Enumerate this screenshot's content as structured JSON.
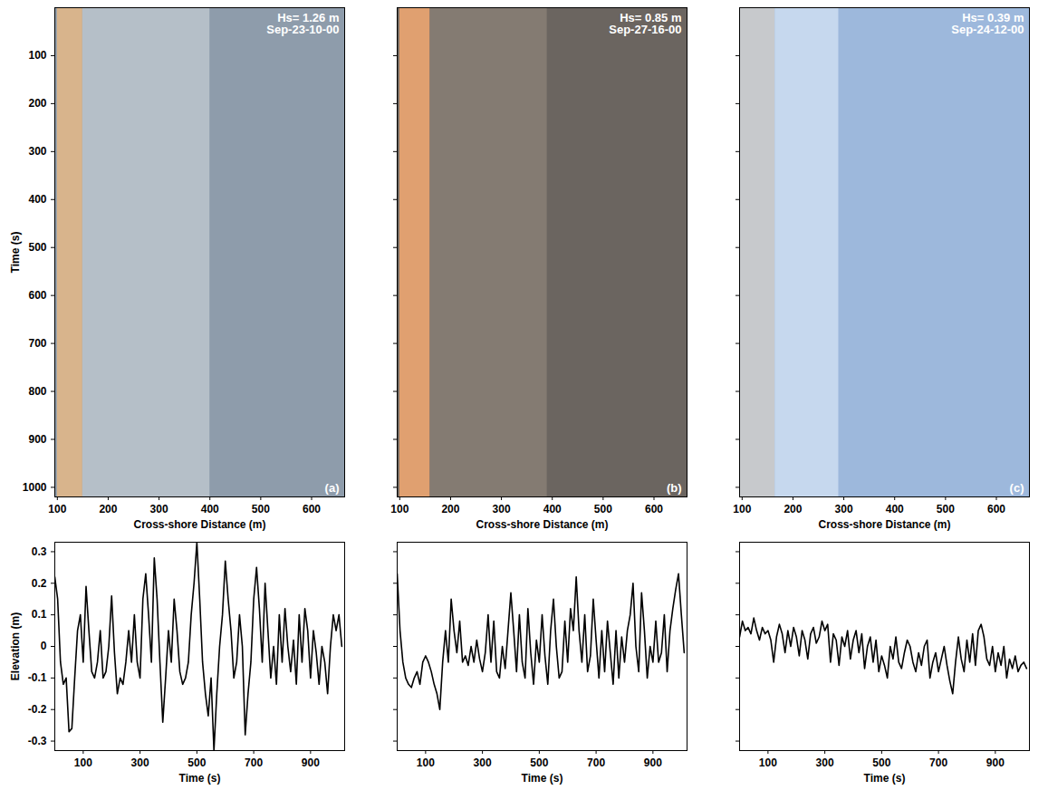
{
  "chart_data": [
    {
      "type": "image",
      "xlabel": "Cross-shore Distance (m)",
      "ylabel": "Time (s)",
      "xlim": [
        95,
        665
      ],
      "xticks": [
        100,
        200,
        300,
        400,
        500,
        600
      ],
      "ylim": [
        0,
        1020
      ],
      "yticks": [
        100,
        200,
        300,
        400,
        500,
        600,
        700,
        800,
        900,
        1000
      ],
      "annotations": [
        "Hs= 1.26 m",
        "Sep-23-10-00"
      ],
      "panel_label": "(a)",
      "color": "#8e9cab",
      "bands": [
        {
          "x0": 100,
          "x1": 150,
          "color": "#d8b48c"
        },
        {
          "x0": 150,
          "x1": 400,
          "color": "#b5bfc8"
        }
      ]
    },
    {
      "type": "image",
      "xlabel": "Cross-shore Distance (m)",
      "xlim": [
        95,
        665
      ],
      "xticks": [
        100,
        200,
        300,
        400,
        500,
        600
      ],
      "ylim": [
        0,
        1020
      ],
      "yticks": [
        100,
        200,
        300,
        400,
        500,
        600,
        700,
        800,
        900,
        1000
      ],
      "tick_labels": "x",
      "annotations": [
        "Hs= 0.85 m",
        "Sep-27-16-00"
      ],
      "panel_label": "(b)",
      "color": "#6b6560",
      "bands": [
        {
          "x0": 100,
          "x1": 160,
          "color": "#e0a070"
        },
        {
          "x0": 160,
          "x1": 390,
          "color": "#847b72"
        }
      ]
    },
    {
      "type": "image",
      "xlabel": "Cross-shore Distance (m)",
      "xlim": [
        95,
        665
      ],
      "xticks": [
        100,
        200,
        300,
        400,
        500,
        600
      ],
      "ylim": [
        0,
        1020
      ],
      "yticks": [
        100,
        200,
        300,
        400,
        500,
        600,
        700,
        800,
        900,
        1000
      ],
      "tick_labels": "x",
      "annotations": [
        "Hs= 0.39 m",
        "Sep-24-12-00"
      ],
      "panel_label": "(c)",
      "color": "#9db8dc",
      "bands": [
        {
          "x0": 95,
          "x1": 165,
          "color": "#c7c9cc"
        },
        {
          "x0": 165,
          "x1": 290,
          "color": "#c6d8ee"
        }
      ]
    },
    {
      "type": "line",
      "xlabel": "Time (s)",
      "ylabel": "Elevation (m)",
      "color": "#000000",
      "xlim": [
        0,
        1020
      ],
      "xticks": [
        100,
        300,
        500,
        700,
        900
      ],
      "ylim": [
        -0.33,
        0.33
      ],
      "yticks": [
        -0.3,
        -0.2,
        -0.1,
        0,
        0.1,
        0.2,
        0.3
      ],
      "x": [
        0,
        10,
        20,
        30,
        40,
        50,
        60,
        70,
        80,
        90,
        100,
        110,
        120,
        130,
        140,
        150,
        160,
        170,
        180,
        190,
        200,
        210,
        220,
        230,
        240,
        250,
        260,
        270,
        280,
        290,
        300,
        310,
        320,
        330,
        340,
        350,
        360,
        370,
        380,
        390,
        400,
        410,
        420,
        430,
        440,
        450,
        460,
        470,
        480,
        490,
        500,
        510,
        520,
        530,
        540,
        550,
        560,
        570,
        580,
        590,
        600,
        610,
        620,
        630,
        640,
        650,
        660,
        670,
        680,
        690,
        700,
        710,
        720,
        730,
        740,
        750,
        760,
        770,
        780,
        790,
        800,
        810,
        820,
        830,
        840,
        850,
        860,
        870,
        880,
        890,
        900,
        910,
        920,
        930,
        940,
        950,
        960,
        970,
        980,
        990,
        1000,
        1010
      ],
      "values": [
        0.22,
        0.15,
        -0.05,
        -0.12,
        -0.1,
        -0.27,
        -0.26,
        -0.1,
        0.05,
        0.1,
        -0.05,
        0.19,
        0.05,
        -0.08,
        -0.1,
        -0.05,
        0.05,
        -0.1,
        -0.08,
        0.0,
        0.16,
        -0.02,
        -0.15,
        -0.1,
        -0.12,
        -0.05,
        0.05,
        -0.05,
        0.1,
        -0.05,
        -0.1,
        0.15,
        0.23,
        0.1,
        -0.05,
        0.28,
        0.15,
        -0.05,
        -0.24,
        -0.1,
        0.05,
        -0.05,
        0.15,
        0.05,
        -0.08,
        -0.12,
        -0.1,
        -0.05,
        0.1,
        0.2,
        0.33,
        0.15,
        -0.05,
        -0.15,
        -0.22,
        -0.1,
        -0.33,
        -0.15,
        0.0,
        0.1,
        0.27,
        0.15,
        0.05,
        -0.1,
        -0.05,
        0.1,
        0.0,
        -0.28,
        -0.15,
        -0.05,
        0.15,
        0.25,
        0.12,
        -0.05,
        0.2,
        0.05,
        -0.1,
        0.0,
        -0.12,
        0.1,
        -0.05,
        0.12,
        0.0,
        -0.08,
        0.02,
        -0.12,
        0.1,
        -0.05,
        0.12,
        0.05,
        -0.1,
        0.05,
        -0.02,
        -0.12,
        0.0,
        -0.05,
        -0.15,
        0.0,
        0.1,
        0.05,
        0.1,
        0.0
      ]
    },
    {
      "type": "line",
      "xlabel": "Time (s)",
      "color": "#000000",
      "tick_labels": "x",
      "xlim": [
        0,
        1020
      ],
      "xticks": [
        100,
        300,
        500,
        700,
        900
      ],
      "ylim": [
        -0.33,
        0.33
      ],
      "yticks": [
        -0.3,
        -0.2,
        -0.1,
        0,
        0.1,
        0.2,
        0.3
      ],
      "x": [
        0,
        10,
        20,
        30,
        40,
        50,
        60,
        70,
        80,
        90,
        100,
        110,
        120,
        130,
        140,
        150,
        160,
        170,
        180,
        190,
        200,
        210,
        220,
        230,
        240,
        250,
        260,
        270,
        280,
        290,
        300,
        310,
        320,
        330,
        340,
        350,
        360,
        370,
        380,
        390,
        400,
        410,
        420,
        430,
        440,
        450,
        460,
        470,
        480,
        490,
        500,
        510,
        520,
        530,
        540,
        550,
        560,
        570,
        580,
        590,
        600,
        610,
        620,
        630,
        640,
        650,
        660,
        670,
        680,
        690,
        700,
        710,
        720,
        730,
        740,
        750,
        760,
        770,
        780,
        790,
        800,
        810,
        820,
        830,
        840,
        850,
        860,
        870,
        880,
        890,
        900,
        910,
        920,
        930,
        940,
        950,
        960,
        970,
        980,
        990,
        1000,
        1010
      ],
      "values": [
        0.23,
        0.05,
        -0.05,
        -0.1,
        -0.12,
        -0.13,
        -0.1,
        -0.08,
        -0.12,
        -0.05,
        -0.03,
        -0.05,
        -0.08,
        -0.12,
        -0.15,
        -0.2,
        -0.05,
        0.05,
        -0.05,
        0.15,
        0.05,
        -0.02,
        0.08,
        -0.05,
        -0.03,
        -0.06,
        0.0,
        -0.05,
        0.02,
        -0.04,
        -0.08,
        -0.02,
        0.1,
        -0.05,
        0.08,
        -0.08,
        -0.1,
        0.0,
        -0.07,
        0.05,
        0.17,
        0.05,
        -0.08,
        0.1,
        -0.05,
        -0.1,
        0.12,
        -0.02,
        -0.12,
        0.02,
        -0.05,
        0.1,
        -0.03,
        -0.12,
        0.05,
        0.15,
        0.0,
        -0.1,
        -0.08,
        0.08,
        -0.05,
        0.12,
        0.05,
        0.22,
        0.05,
        -0.05,
        0.1,
        -0.08,
        -0.03,
        0.15,
        0.02,
        -0.1,
        0.05,
        -0.08,
        0.08,
        -0.02,
        -0.12,
        0.05,
        -0.1,
        0.03,
        -0.05,
        0.05,
        0.1,
        0.2,
        0.0,
        -0.08,
        0.17,
        0.05,
        -0.1,
        0.0,
        -0.05,
        0.08,
        -0.05,
        -0.02,
        0.1,
        -0.08,
        0.05,
        0.12,
        0.18,
        0.23,
        0.1,
        -0.02
      ]
    },
    {
      "type": "line",
      "xlabel": "Time (s)",
      "color": "#000000",
      "tick_labels": "x",
      "xlim": [
        0,
        1020
      ],
      "xticks": [
        100,
        300,
        500,
        700,
        900
      ],
      "ylim": [
        -0.33,
        0.33
      ],
      "yticks": [
        -0.3,
        -0.2,
        -0.1,
        0,
        0.1,
        0.2,
        0.3
      ],
      "x": [
        0,
        10,
        20,
        30,
        40,
        50,
        60,
        70,
        80,
        90,
        100,
        110,
        120,
        130,
        140,
        150,
        160,
        170,
        180,
        190,
        200,
        210,
        220,
        230,
        240,
        250,
        260,
        270,
        280,
        290,
        300,
        310,
        320,
        330,
        340,
        350,
        360,
        370,
        380,
        390,
        400,
        410,
        420,
        430,
        440,
        450,
        460,
        470,
        480,
        490,
        500,
        510,
        520,
        530,
        540,
        550,
        560,
        570,
        580,
        590,
        600,
        610,
        620,
        630,
        640,
        650,
        660,
        670,
        680,
        690,
        700,
        710,
        720,
        730,
        740,
        750,
        760,
        770,
        780,
        790,
        800,
        810,
        820,
        830,
        840,
        850,
        860,
        870,
        880,
        890,
        900,
        910,
        920,
        930,
        940,
        950,
        960,
        970,
        980,
        990,
        1000,
        1010
      ],
      "values": [
        0.03,
        0.08,
        0.05,
        0.06,
        0.04,
        0.09,
        0.05,
        0.02,
        0.06,
        0.04,
        0.05,
        0.02,
        -0.05,
        0.03,
        0.07,
        0.04,
        -0.02,
        0.05,
        0.0,
        0.06,
        0.03,
        -0.03,
        0.05,
        0.02,
        -0.04,
        0.04,
        0.06,
        0.01,
        0.03,
        0.08,
        0.05,
        0.07,
        -0.05,
        0.04,
        0.02,
        -0.06,
        0.03,
        0.0,
        0.05,
        -0.04,
        0.02,
        0.05,
        -0.02,
        0.04,
        -0.07,
        0.0,
        0.03,
        -0.05,
        0.02,
        -0.08,
        -0.03,
        -0.06,
        -0.1,
        0.0,
        -0.04,
        0.03,
        -0.05,
        -0.07,
        -0.02,
        0.02,
        0.0,
        -0.05,
        -0.08,
        -0.02,
        -0.06,
        0.0,
        0.02,
        -0.1,
        -0.05,
        -0.02,
        -0.08,
        -0.04,
        0.0,
        -0.06,
        -0.11,
        -0.15,
        -0.05,
        0.03,
        -0.04,
        -0.08,
        0.02,
        -0.05,
        0.04,
        -0.06,
        0.05,
        0.07,
        0.03,
        -0.04,
        -0.06,
        0.0,
        -0.08,
        -0.02,
        -0.06,
        0.0,
        -0.1,
        -0.04,
        -0.07,
        -0.03,
        -0.08,
        -0.06,
        -0.05,
        -0.07
      ]
    }
  ]
}
